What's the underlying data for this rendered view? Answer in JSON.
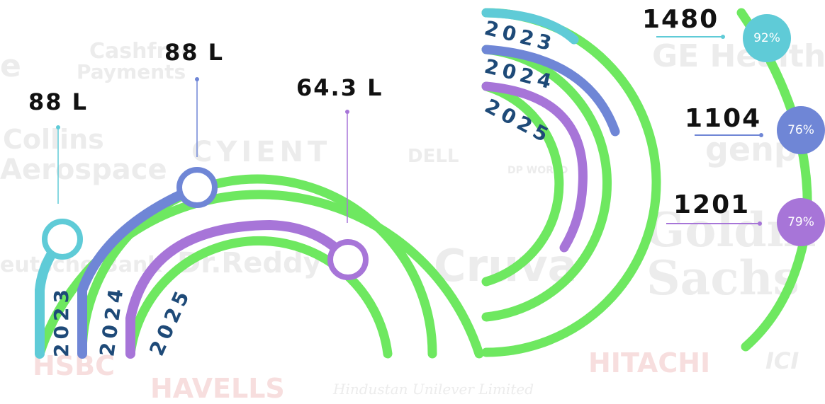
{
  "background_logos": [
    {
      "text": "Cashfree",
      "tone": "gray"
    },
    {
      "text": "Payments",
      "tone": "gray"
    },
    {
      "text": "e",
      "tone": "gray"
    },
    {
      "text": "Collins",
      "tone": "gray"
    },
    {
      "text": "Aerospace",
      "tone": "gray"
    },
    {
      "text": "CYIENT",
      "tone": "gray"
    },
    {
      "text": "DELL",
      "tone": "gray"
    },
    {
      "text": "DP WORLD",
      "tone": "gray"
    },
    {
      "text": "Dr.Reddy",
      "tone": "gray"
    },
    {
      "text": "eutsche Bank",
      "tone": "gray"
    },
    {
      "text": "Cruva",
      "tone": "gray"
    },
    {
      "text": "GE HealthC",
      "tone": "gray"
    },
    {
      "text": "genp",
      "tone": "gray"
    },
    {
      "text": "Goldm",
      "tone": "gray"
    },
    {
      "text": "Sachs",
      "tone": "gray"
    },
    {
      "text": "HSBC",
      "tone": "red"
    },
    {
      "text": "HAVELLS",
      "tone": "red"
    },
    {
      "text": "Hindustan Unilever Limited",
      "tone": "gray"
    },
    {
      "text": "HITACHI",
      "tone": "red"
    },
    {
      "text": "ICI",
      "tone": "gray"
    }
  ],
  "left_chart": {
    "arcs": [
      {
        "year": "2023",
        "value": "88 L",
        "color": "#5fcbd7"
      },
      {
        "year": "2024",
        "value": "88 L",
        "color": "#6f86d6"
      },
      {
        "year": "2025",
        "value": "64.3 L",
        "color": "#a775d8"
      }
    ],
    "track_color": "#6ee860"
  },
  "right_chart": {
    "arcs": [
      {
        "year": "2023",
        "value": "1480",
        "percent": "92%",
        "fraction": 0.92,
        "color": "#5fcbd7"
      },
      {
        "year": "2024",
        "value": "1104",
        "percent": "76%",
        "fraction": 0.76,
        "color": "#6f86d6"
      },
      {
        "year": "2025",
        "value": "1201",
        "percent": "79%",
        "fraction": 0.79,
        "color": "#a775d8"
      }
    ],
    "track_color": "#6ee860"
  }
}
